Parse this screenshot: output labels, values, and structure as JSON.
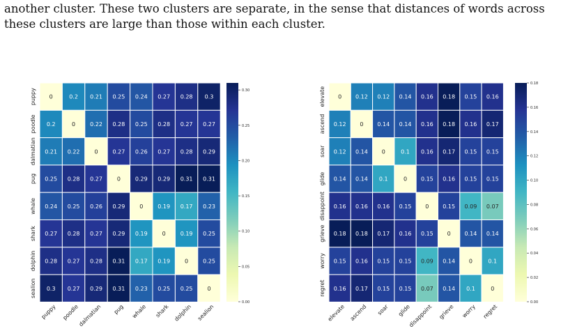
{
  "paragraph": {
    "line1": "another cluster.  These two clusters are separate, in the sense that distances of words across",
    "line2": "these clusters are large than those within each cluster."
  },
  "chart_data": [
    {
      "type": "heatmap",
      "labels": [
        "puppy",
        "poodle",
        "dalmatian",
        "pug",
        "whale",
        "shark",
        "dolphin",
        "sealion"
      ],
      "values": [
        [
          0,
          0.2,
          0.21,
          0.25,
          0.24,
          0.27,
          0.28,
          0.3
        ],
        [
          0.2,
          0,
          0.22,
          0.28,
          0.25,
          0.28,
          0.27,
          0.27
        ],
        [
          0.21,
          0.22,
          0,
          0.27,
          0.26,
          0.27,
          0.28,
          0.29
        ],
        [
          0.25,
          0.28,
          0.27,
          0,
          0.29,
          0.29,
          0.31,
          0.31
        ],
        [
          0.24,
          0.25,
          0.26,
          0.29,
          0,
          0.19,
          0.17,
          0.23
        ],
        [
          0.27,
          0.28,
          0.27,
          0.29,
          0.19,
          0,
          0.19,
          0.25
        ],
        [
          0.28,
          0.27,
          0.28,
          0.31,
          0.17,
          0.19,
          0,
          0.25
        ],
        [
          0.3,
          0.27,
          0.29,
          0.31,
          0.23,
          0.25,
          0.25,
          0
        ]
      ],
      "vmin": 0,
      "vmax": 0.31,
      "colorbar_ticks": [
        "0.00",
        "0.05",
        "0.10",
        "0.15",
        "0.20",
        "0.25",
        "0.30"
      ],
      "colormap": "YlGnBu"
    },
    {
      "type": "heatmap",
      "labels": [
        "elevate",
        "ascend",
        "soar",
        "glide",
        "disappoint",
        "grieve",
        "worry",
        "regret"
      ],
      "values": [
        [
          0,
          0.12,
          0.12,
          0.14,
          0.16,
          0.18,
          0.15,
          0.16
        ],
        [
          0.12,
          0,
          0.14,
          0.14,
          0.16,
          0.18,
          0.16,
          0.17
        ],
        [
          0.12,
          0.14,
          0,
          0.1,
          0.16,
          0.17,
          0.15,
          0.15
        ],
        [
          0.14,
          0.14,
          0.1,
          0,
          0.15,
          0.16,
          0.15,
          0.15
        ],
        [
          0.16,
          0.16,
          0.16,
          0.15,
          0,
          0.15,
          0.09,
          0.07
        ],
        [
          0.18,
          0.18,
          0.17,
          0.16,
          0.15,
          0,
          0.14,
          0.14
        ],
        [
          0.15,
          0.16,
          0.15,
          0.15,
          0.09,
          0.14,
          0,
          0.1
        ],
        [
          0.16,
          0.17,
          0.15,
          0.15,
          0.07,
          0.14,
          0.1,
          0
        ]
      ],
      "vmin": 0,
      "vmax": 0.18,
      "colorbar_ticks": [
        "0.00",
        "0.02",
        "0.04",
        "0.06",
        "0.08",
        "0.10",
        "0.12",
        "0.14",
        "0.16",
        "0.18"
      ],
      "colormap": "YlGnBu"
    }
  ]
}
